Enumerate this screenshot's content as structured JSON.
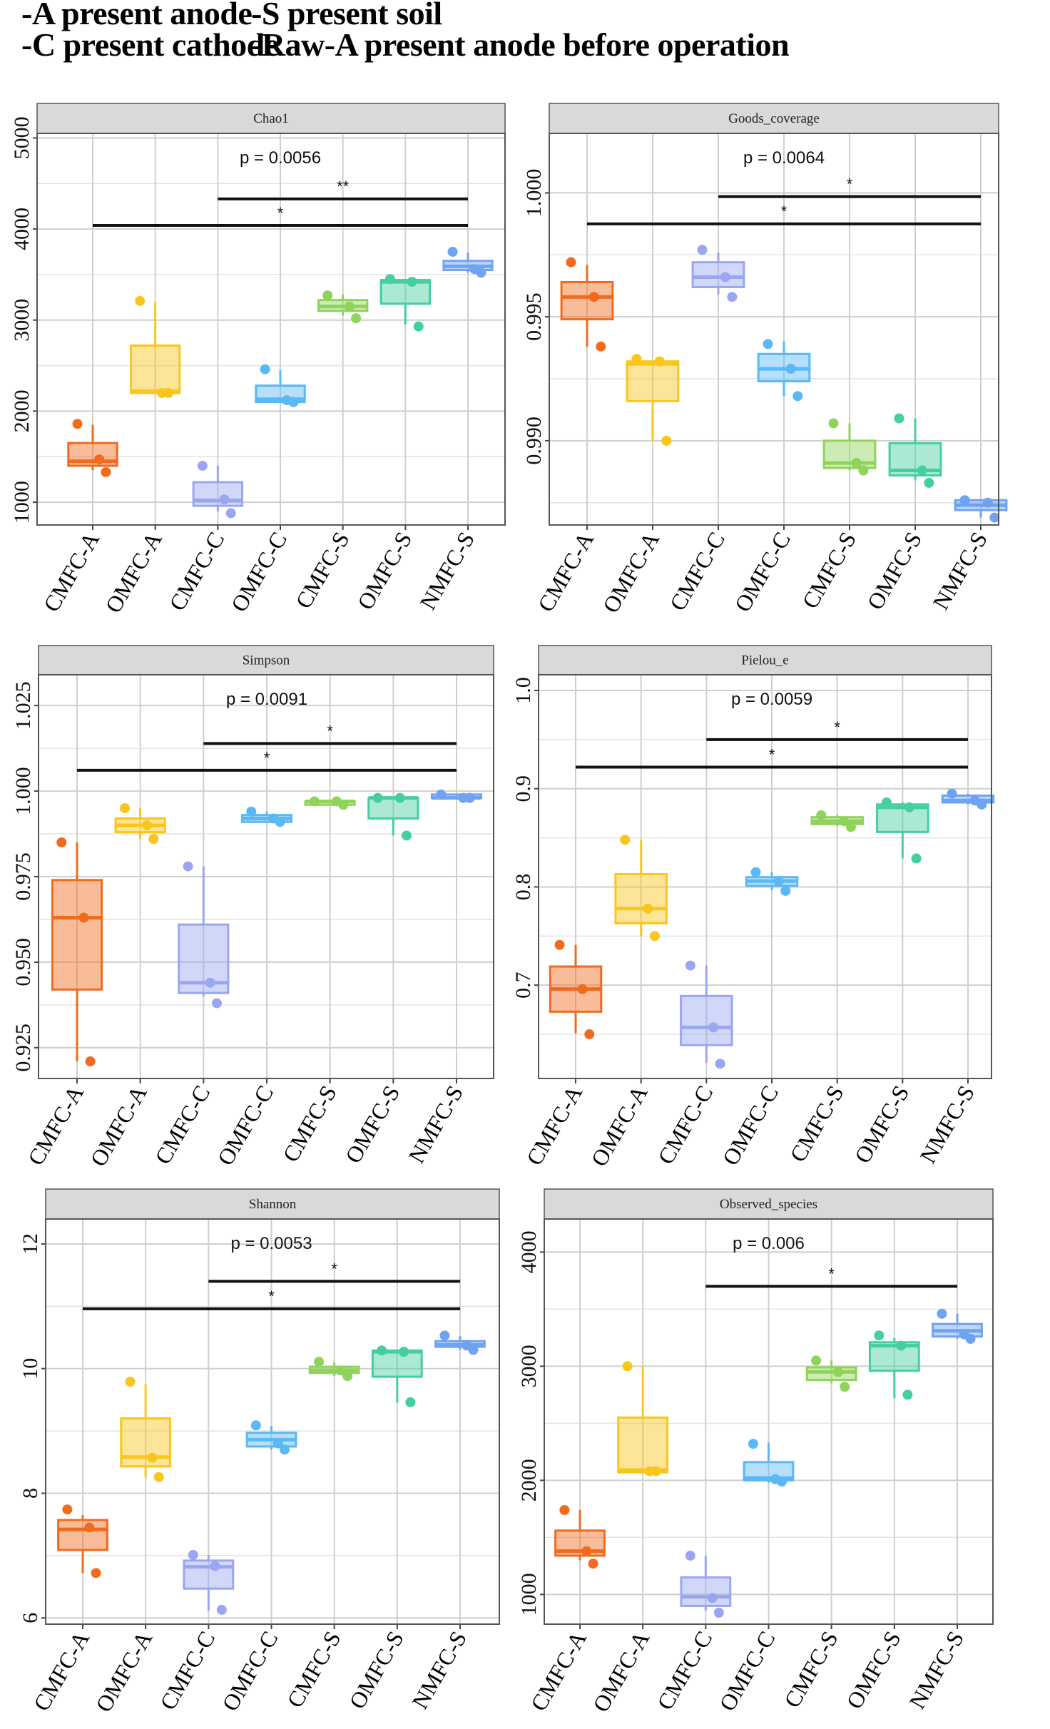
{
  "legend": {
    "lines": [
      {
        "left": "-A present anode",
        "right": "-S present soil"
      },
      {
        "left": "-C present cathode",
        "right": "-Raw-A present anode before operation"
      }
    ]
  },
  "colors": {
    "CMFC-A": "#f26b1d",
    "OMFC-A": "#f8c61c",
    "CMFC-C": "#9aa6f2",
    "OMFC-C": "#5ab8f4",
    "CMFC-S": "#8fd35a",
    "OMFC-S": "#45cfa0",
    "NMFC-S": "#6fa3f2"
  },
  "chart_data": [
    {
      "type": "box",
      "title": "Chao1",
      "categories": [
        "CMFC-A",
        "OMFC-A",
        "CMFC-C",
        "OMFC-C",
        "CMFC-S",
        "OMFC-S",
        "NMFC-S"
      ],
      "ylim": [
        750,
        5050
      ],
      "yticks": [
        1000,
        2000,
        3000,
        4000,
        5000
      ],
      "ytick_labels": [
        "1000",
        "2000",
        "3000",
        "4000",
        "5000"
      ],
      "p_value": "p = 0.0056",
      "boxes": [
        {
          "q1": 1400,
          "median": 1450,
          "q3": 1650,
          "min": 1350,
          "max": 1850,
          "points": [
            1860,
            1470,
            1330
          ]
        },
        {
          "q1": 2200,
          "median": 2220,
          "q3": 2720,
          "min": 2200,
          "max": 3200,
          "points": [
            3210,
            2200,
            2200
          ]
        },
        {
          "q1": 960,
          "median": 1020,
          "q3": 1220,
          "min": 900,
          "max": 1400,
          "points": [
            1400,
            1030,
            880
          ]
        },
        {
          "q1": 2100,
          "median": 2130,
          "q3": 2280,
          "min": 2100,
          "max": 2450,
          "points": [
            2460,
            2120,
            2100
          ]
        },
        {
          "q1": 3100,
          "median": 3150,
          "q3": 3220,
          "min": 3050,
          "max": 3280,
          "points": [
            3270,
            3150,
            3020
          ]
        },
        {
          "q1": 3180,
          "median": 3420,
          "q3": 3440,
          "min": 2950,
          "max": 3440,
          "points": [
            3450,
            3420,
            2930
          ]
        },
        {
          "q1": 3550,
          "median": 3590,
          "q3": 3650,
          "min": 3520,
          "max": 3740,
          "points": [
            3750,
            3560,
            3520
          ]
        }
      ],
      "brackets": [
        {
          "from": "CMFC-C",
          "to": "NMFC-S",
          "y": 4330,
          "label": "**"
        },
        {
          "from": "CMFC-A",
          "to": "NMFC-S",
          "y": 4040,
          "label": "*"
        }
      ]
    },
    {
      "type": "box",
      "title": "Goods_coverage",
      "categories": [
        "CMFC-A",
        "OMFC-A",
        "CMFC-C",
        "OMFC-C",
        "CMFC-S",
        "OMFC-S",
        "NMFC-S"
      ],
      "ylim": [
        0.9866,
        1.0024
      ],
      "yticks": [
        0.99,
        0.995,
        1.0
      ],
      "ytick_labels": [
        "0.990",
        "0.995",
        "1.000"
      ],
      "p_value": "p = 0.0064",
      "boxes": [
        {
          "q1": 0.9949,
          "median": 0.9958,
          "q3": 0.9964,
          "min": 0.9938,
          "max": 0.9971,
          "points": [
            0.9972,
            0.9958,
            0.9938
          ]
        },
        {
          "q1": 0.9916,
          "median": 0.9931,
          "q3": 0.9932,
          "min": 0.99,
          "max": 0.9932,
          "points": [
            0.9933,
            0.9932,
            0.99
          ]
        },
        {
          "q1": 0.9962,
          "median": 0.9966,
          "q3": 0.9972,
          "min": 0.9959,
          "max": 0.9976,
          "points": [
            0.9977,
            0.9966,
            0.9958
          ]
        },
        {
          "q1": 0.9924,
          "median": 0.9929,
          "q3": 0.9935,
          "min": 0.9918,
          "max": 0.994,
          "points": [
            0.9939,
            0.9929,
            0.9918
          ]
        },
        {
          "q1": 0.9889,
          "median": 0.9891,
          "q3": 0.99,
          "min": 0.9888,
          "max": 0.9907,
          "points": [
            0.9907,
            0.9891,
            0.9888
          ]
        },
        {
          "q1": 0.9886,
          "median": 0.9888,
          "q3": 0.9899,
          "min": 0.9884,
          "max": 0.9909,
          "points": [
            0.9909,
            0.9888,
            0.9883
          ]
        },
        {
          "q1": 0.9872,
          "median": 0.9874,
          "q3": 0.9876,
          "min": 0.9869,
          "max": 0.9876,
          "points": [
            0.9876,
            0.9875,
            0.9869
          ]
        }
      ],
      "brackets": [
        {
          "from": "CMFC-C",
          "to": "NMFC-S",
          "y": 0.99985,
          "label": "*"
        },
        {
          "from": "CMFC-A",
          "to": "NMFC-S",
          "y": 0.99875,
          "label": "*"
        }
      ]
    },
    {
      "type": "box",
      "title": "Simpson",
      "categories": [
        "CMFC-A",
        "OMFC-A",
        "CMFC-C",
        "OMFC-C",
        "CMFC-S",
        "OMFC-S",
        "NMFC-S"
      ],
      "ylim": [
        0.916,
        1.034
      ],
      "yticks": [
        0.925,
        0.95,
        0.975,
        1.0,
        1.025
      ],
      "ytick_labels": [
        "0.925",
        "0.950",
        "0.975",
        "1.000",
        "1.025"
      ],
      "p_value": "p = 0.0091",
      "boxes": [
        {
          "q1": 0.942,
          "median": 0.963,
          "q3": 0.974,
          "min": 0.921,
          "max": 0.985,
          "points": [
            0.985,
            0.963,
            0.921
          ]
        },
        {
          "q1": 0.988,
          "median": 0.99,
          "q3": 0.992,
          "min": 0.986,
          "max": 0.995,
          "points": [
            0.995,
            0.99,
            0.986
          ]
        },
        {
          "q1": 0.941,
          "median": 0.944,
          "q3": 0.961,
          "min": 0.94,
          "max": 0.978,
          "points": [
            0.978,
            0.944,
            0.938
          ]
        },
        {
          "q1": 0.991,
          "median": 0.992,
          "q3": 0.993,
          "min": 0.991,
          "max": 0.994,
          "points": [
            0.994,
            0.992,
            0.991
          ]
        },
        {
          "q1": 0.996,
          "median": 0.997,
          "q3": 0.997,
          "min": 0.996,
          "max": 0.997,
          "points": [
            0.997,
            0.997,
            0.996
          ]
        },
        {
          "q1": 0.992,
          "median": 0.998,
          "q3": 0.998,
          "min": 0.987,
          "max": 0.998,
          "points": [
            0.998,
            0.998,
            0.987
          ]
        },
        {
          "q1": 0.998,
          "median": 0.998,
          "q3": 0.999,
          "min": 0.998,
          "max": 0.999,
          "points": [
            0.999,
            0.998,
            0.998
          ]
        }
      ],
      "brackets": [
        {
          "from": "CMFC-C",
          "to": "NMFC-S",
          "y": 1.0139,
          "label": "*"
        },
        {
          "from": "CMFC-A",
          "to": "NMFC-S",
          "y": 1.0061,
          "label": "*"
        }
      ]
    },
    {
      "type": "box",
      "title": "Pielou_e",
      "categories": [
        "CMFC-A",
        "OMFC-A",
        "CMFC-C",
        "OMFC-C",
        "CMFC-S",
        "OMFC-S",
        "NMFC-S"
      ],
      "ylim": [
        0.605,
        1.016
      ],
      "yticks": [
        0.7,
        0.8,
        0.9,
        1.0
      ],
      "ytick_labels": [
        "0.7",
        "0.8",
        "0.9",
        "1.0"
      ],
      "p_value": "p = 0.0059",
      "boxes": [
        {
          "q1": 0.673,
          "median": 0.696,
          "q3": 0.719,
          "min": 0.651,
          "max": 0.741,
          "points": [
            0.741,
            0.696,
            0.65
          ]
        },
        {
          "q1": 0.763,
          "median": 0.778,
          "q3": 0.813,
          "min": 0.75,
          "max": 0.848,
          "points": [
            0.848,
            0.778,
            0.75
          ]
        },
        {
          "q1": 0.639,
          "median": 0.657,
          "q3": 0.689,
          "min": 0.621,
          "max": 0.72,
          "points": [
            0.72,
            0.657,
            0.62
          ]
        },
        {
          "q1": 0.801,
          "median": 0.806,
          "q3": 0.81,
          "min": 0.797,
          "max": 0.815,
          "points": [
            0.815,
            0.806,
            0.796
          ]
        },
        {
          "q1": 0.864,
          "median": 0.867,
          "q3": 0.871,
          "min": 0.862,
          "max": 0.873,
          "points": [
            0.873,
            0.867,
            0.861
          ]
        },
        {
          "q1": 0.856,
          "median": 0.881,
          "q3": 0.884,
          "min": 0.829,
          "max": 0.886,
          "points": [
            0.886,
            0.881,
            0.829
          ]
        },
        {
          "q1": 0.886,
          "median": 0.888,
          "q3": 0.893,
          "min": 0.884,
          "max": 0.895,
          "points": [
            0.895,
            0.888,
            0.884
          ]
        }
      ],
      "brackets": [
        {
          "from": "CMFC-C",
          "to": "NMFC-S",
          "y": 0.95,
          "label": "*"
        },
        {
          "from": "CMFC-A",
          "to": "NMFC-S",
          "y": 0.922,
          "label": "*"
        }
      ]
    },
    {
      "type": "box",
      "title": "Shannon",
      "categories": [
        "CMFC-A",
        "OMFC-A",
        "CMFC-C",
        "OMFC-C",
        "CMFC-S",
        "OMFC-S",
        "NMFC-S"
      ],
      "ylim": [
        5.9,
        12.4
      ],
      "yticks": [
        6,
        8,
        10,
        12
      ],
      "ytick_labels": [
        "6",
        "8",
        "10",
        "12"
      ],
      "p_value": "p = 0.0053",
      "boxes": [
        {
          "q1": 7.09,
          "median": 7.42,
          "q3": 7.57,
          "min": 6.72,
          "max": 7.65,
          "points": [
            7.74,
            7.45,
            6.72
          ]
        },
        {
          "q1": 8.43,
          "median": 8.58,
          "q3": 9.2,
          "min": 8.25,
          "max": 9.75,
          "points": [
            9.79,
            8.57,
            8.26
          ]
        },
        {
          "q1": 6.47,
          "median": 6.82,
          "q3": 6.92,
          "min": 6.12,
          "max": 7.01,
          "points": [
            7.01,
            6.83,
            6.13
          ]
        },
        {
          "q1": 8.75,
          "median": 8.86,
          "q3": 8.97,
          "min": 8.7,
          "max": 9.08,
          "points": [
            9.09,
            8.8,
            8.7
          ]
        },
        {
          "q1": 9.93,
          "median": 9.97,
          "q3": 10.03,
          "min": 9.88,
          "max": 10.1,
          "points": [
            10.11,
            9.97,
            9.88
          ]
        },
        {
          "q1": 9.87,
          "median": 10.27,
          "q3": 10.29,
          "min": 9.45,
          "max": 10.29,
          "points": [
            10.29,
            10.27,
            9.46
          ]
        },
        {
          "q1": 10.35,
          "median": 10.38,
          "q3": 10.44,
          "min": 10.3,
          "max": 10.52,
          "points": [
            10.53,
            10.37,
            10.3
          ]
        }
      ],
      "brackets": [
        {
          "from": "CMFC-C",
          "to": "NMFC-S",
          "y": 11.4,
          "label": "*"
        },
        {
          "from": "CMFC-A",
          "to": "NMFC-S",
          "y": 10.96,
          "label": "*"
        }
      ]
    },
    {
      "type": "box",
      "title": "Observed_species",
      "categories": [
        "CMFC-A",
        "OMFC-A",
        "CMFC-C",
        "OMFC-C",
        "CMFC-S",
        "OMFC-S",
        "NMFC-S"
      ],
      "ylim": [
        740,
        4290
      ],
      "yticks": [
        1000,
        2000,
        3000,
        4000
      ],
      "ytick_labels": [
        "1000",
        "2000",
        "3000",
        "4000"
      ],
      "p_value": "p = 0.006",
      "boxes": [
        {
          "q1": 1340,
          "median": 1380,
          "q3": 1560,
          "min": 1300,
          "max": 1740,
          "points": [
            1740,
            1380,
            1270
          ]
        },
        {
          "q1": 2070,
          "median": 2090,
          "q3": 2550,
          "min": 2070,
          "max": 3000,
          "points": [
            3000,
            2080,
            2080
          ]
        },
        {
          "q1": 900,
          "median": 980,
          "q3": 1150,
          "min": 860,
          "max": 1340,
          "points": [
            1340,
            970,
            840
          ]
        },
        {
          "q1": 2000,
          "median": 2020,
          "q3": 2160,
          "min": 1980,
          "max": 2330,
          "points": [
            2320,
            2010,
            1990
          ]
        },
        {
          "q1": 2880,
          "median": 2950,
          "q3": 2990,
          "min": 2850,
          "max": 3050,
          "points": [
            3050,
            2950,
            2820
          ]
        },
        {
          "q1": 2960,
          "median": 3180,
          "q3": 3210,
          "min": 2720,
          "max": 3250,
          "points": [
            3270,
            3180,
            2750
          ]
        },
        {
          "q1": 3260,
          "median": 3310,
          "q3": 3370,
          "min": 3240,
          "max": 3460,
          "points": [
            3460,
            3280,
            3240
          ]
        }
      ],
      "brackets": [
        {
          "from": "CMFC-C",
          "to": "NMFC-S",
          "y": 3700,
          "label": "*"
        }
      ]
    }
  ]
}
